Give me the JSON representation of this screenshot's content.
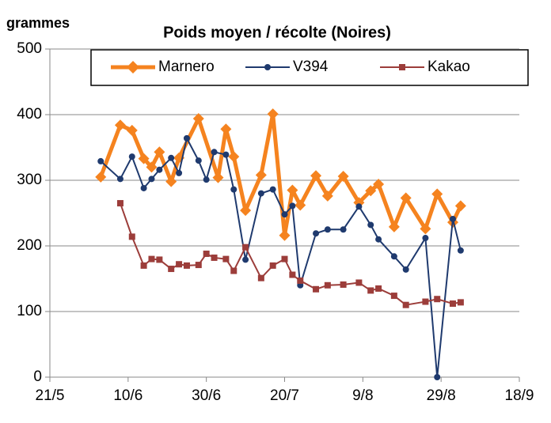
{
  "chart_data": {
    "type": "line",
    "title": "Poids moyen / récolte (Noires)",
    "y_label": "grammes",
    "legend": "top",
    "grid": true,
    "ylim": [
      0,
      500
    ],
    "yticks": [
      0,
      100,
      200,
      300,
      400,
      500
    ],
    "xlim": [
      "21/5",
      "18/9"
    ],
    "xticks": [
      "21/5",
      "10/6",
      "30/6",
      "20/7",
      "9/8",
      "29/8",
      "18/9"
    ],
    "series": [
      {
        "name": "Marnero",
        "color": "#f5831f",
        "marker": "diamond",
        "x": [
          "3/6",
          "8/6",
          "11/6",
          "14/6",
          "16/6",
          "18/6",
          "21/6",
          "23/6",
          "28/6",
          "3/7",
          "5/7",
          "7/7",
          "10/7",
          "14/7",
          "17/7",
          "20/7",
          "22/7",
          "24/7",
          "28/7",
          "31/7",
          "4/8",
          "8/8",
          "11/8",
          "13/8",
          "17/8",
          "20/8",
          "25/8",
          "28/8",
          "1/9",
          "3/9"
        ],
        "values": [
          305,
          384,
          376,
          333,
          320,
          343,
          298,
          334,
          394,
          304,
          378,
          336,
          254,
          308,
          401,
          216,
          285,
          262,
          307,
          276,
          306,
          266,
          284,
          294,
          229,
          273,
          226,
          279,
          236,
          261
        ]
      },
      {
        "name": "V394",
        "color": "#1f3a6e",
        "marker": "circle",
        "x": [
          "3/6",
          "8/6",
          "11/6",
          "14/6",
          "16/6",
          "18/6",
          "21/6",
          "23/6",
          "25/6",
          "28/6",
          "30/6",
          "2/7",
          "5/7",
          "7/7",
          "10/7",
          "14/7",
          "17/7",
          "20/7",
          "22/7",
          "24/7",
          "28/7",
          "31/7",
          "4/8",
          "8/8",
          "11/8",
          "13/8",
          "17/8",
          "20/8",
          "25/8",
          "28/8",
          "1/9",
          "3/9"
        ],
        "values": [
          329,
          302,
          336,
          288,
          302,
          316,
          334,
          311,
          364,
          330,
          301,
          343,
          339,
          286,
          179,
          280,
          286,
          248,
          261,
          140,
          219,
          225,
          225,
          260,
          232,
          210,
          184,
          164,
          212,
          0,
          241,
          193
        ]
      },
      {
        "name": "Kakao",
        "color": "#9c3d3a",
        "marker": "square",
        "x": [
          "8/6",
          "11/6",
          "14/6",
          "16/6",
          "18/6",
          "21/6",
          "23/6",
          "25/6",
          "28/6",
          "30/6",
          "2/7",
          "5/7",
          "7/7",
          "10/7",
          "14/7",
          "17/7",
          "20/7",
          "22/7",
          "24/7",
          "28/7",
          "31/7",
          "4/8",
          "8/8",
          "11/8",
          "13/8",
          "17/8",
          "20/8",
          "25/8",
          "28/8",
          "1/9",
          "3/9"
        ],
        "values": [
          265,
          214,
          170,
          180,
          179,
          165,
          172,
          170,
          171,
          188,
          182,
          180,
          162,
          198,
          151,
          170,
          180,
          156,
          147,
          134,
          140,
          141,
          144,
          132,
          135,
          124,
          110,
          115,
          119,
          112,
          114
        ]
      }
    ]
  }
}
